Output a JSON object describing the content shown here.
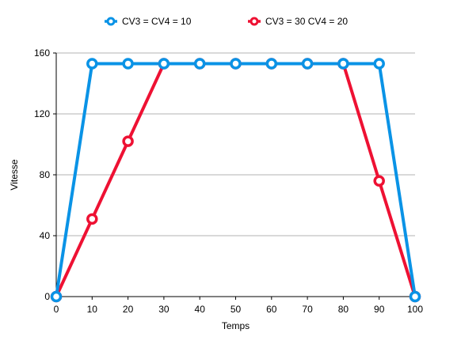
{
  "chart_data": {
    "type": "line",
    "title": "",
    "xlabel": "Temps",
    "ylabel": "Vitesse",
    "x": [
      0,
      10,
      20,
      30,
      40,
      50,
      60,
      70,
      80,
      90,
      100
    ],
    "xlim": [
      0,
      100
    ],
    "ylim": [
      0,
      160
    ],
    "xticks": [
      0,
      10,
      20,
      30,
      40,
      50,
      60,
      70,
      80,
      90,
      100
    ],
    "yticks": [
      0,
      40,
      80,
      120,
      160
    ],
    "grid": "horizontal",
    "legend_position": "top",
    "series": [
      {
        "name": "CV3 = CV4 = 10",
        "color": "#0a93e6",
        "values": [
          0,
          153,
          153,
          153,
          153,
          153,
          153,
          153,
          153,
          153,
          0
        ]
      },
      {
        "name": "CV3 = 30 CV4 = 20",
        "color": "#ee1133",
        "values": [
          0,
          51,
          102,
          153,
          153,
          153,
          153,
          153,
          153,
          76,
          0
        ]
      }
    ]
  }
}
